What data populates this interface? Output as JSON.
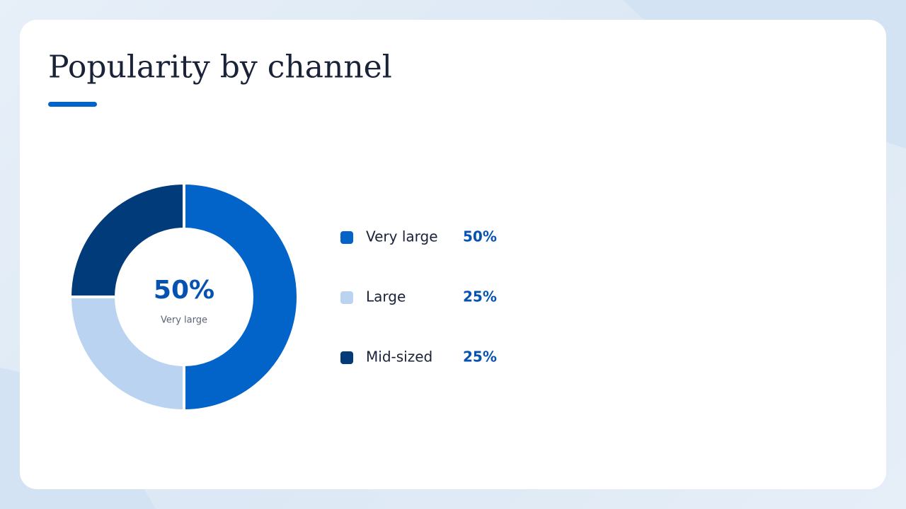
{
  "chart_data": {
    "type": "pie",
    "title": "Popularity by channel",
    "categories": [
      "Very large",
      "Large",
      "Mid-sized"
    ],
    "values": [
      50,
      25,
      25
    ],
    "value_labels": [
      "50%",
      "25%",
      "25%"
    ],
    "colors": [
      "#0263c9",
      "#b9d3f0",
      "#023b7a"
    ],
    "donut": true
  }
}
